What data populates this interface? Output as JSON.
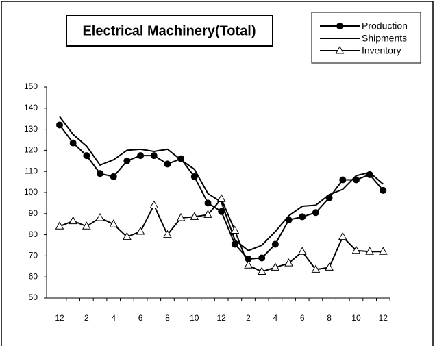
{
  "chart_data": {
    "type": "line",
    "title": "Electrical Machinery(Total)",
    "categories": [
      "12",
      null,
      "2",
      null,
      "4",
      null,
      "6",
      null,
      "8",
      null,
      "10",
      null,
      "12",
      null,
      "2",
      null,
      "4",
      null,
      "6",
      null,
      "8",
      null,
      "10",
      null,
      "12"
    ],
    "series": [
      {
        "name": "Production",
        "color": "#000000",
        "marker": "circle",
        "values": [
          132,
          123.5,
          117.5,
          109,
          107.5,
          115,
          117.5,
          117.5,
          113.5,
          116,
          107.5,
          95,
          91,
          75.5,
          68.5,
          69,
          75.5,
          87,
          88.5,
          90.5,
          97.5,
          106,
          106,
          108.5,
          101
        ]
      },
      {
        "name": "Shipments",
        "color": "#000000",
        "marker": "none",
        "values": [
          136,
          127.5,
          122,
          113,
          115.5,
          120,
          120.5,
          119.5,
          120.5,
          115.5,
          111,
          99.5,
          95.5,
          77.5,
          72.5,
          75,
          81.5,
          89,
          93.5,
          94,
          99,
          101.5,
          108,
          109.5,
          104
        ]
      },
      {
        "name": "Inventory",
        "color": "#000000",
        "marker": "triangle",
        "values": [
          84,
          86.5,
          84,
          88,
          85,
          79,
          81.5,
          94,
          80,
          88,
          88.5,
          89.5,
          97,
          82,
          65.5,
          62.5,
          64.5,
          66.5,
          72,
          63.5,
          64.5,
          79,
          72.5,
          72,
          72
        ]
      }
    ],
    "ylim": [
      50,
      150
    ],
    "yticks": [
      50,
      60,
      70,
      80,
      90,
      100,
      110,
      120,
      130,
      140,
      150
    ],
    "grid": false,
    "legend": "top-right"
  }
}
